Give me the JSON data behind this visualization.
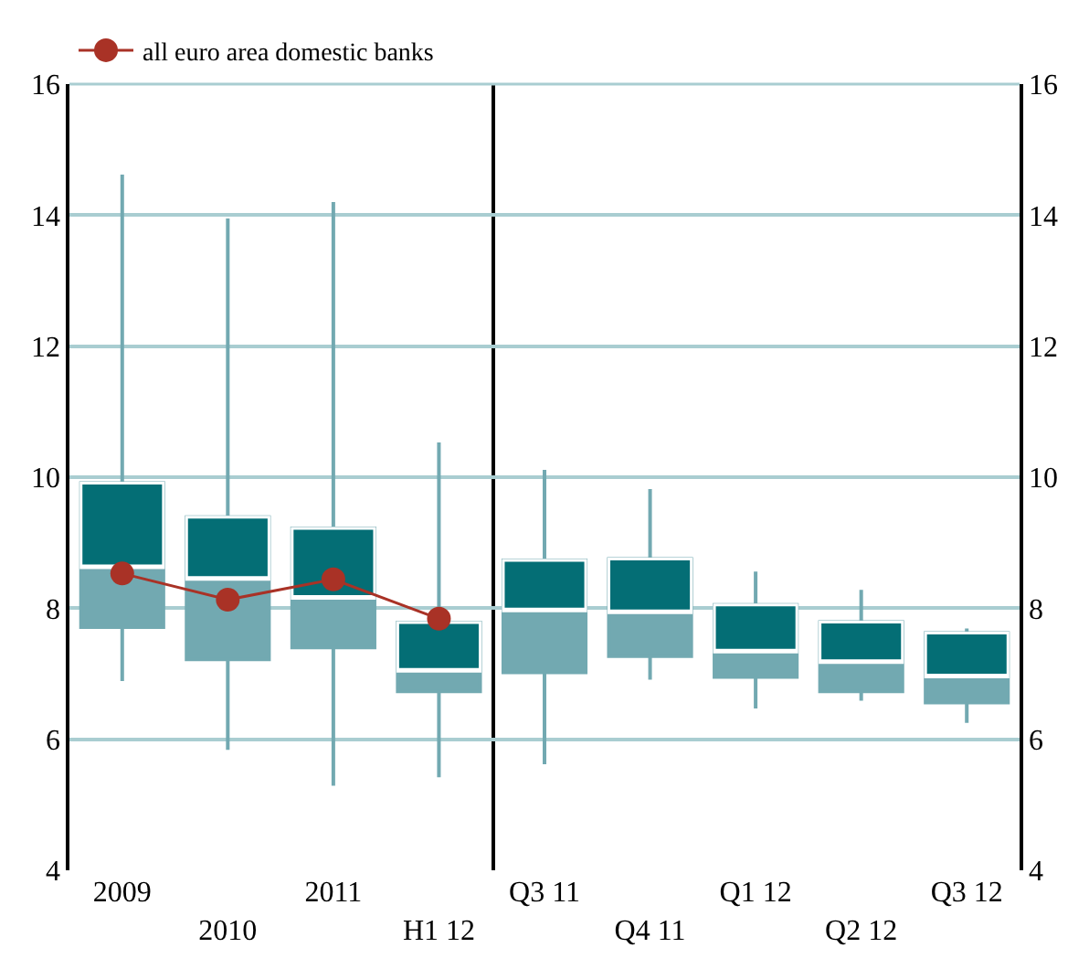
{
  "chart_data": [
    {
      "type": "box",
      "categories": [
        "2009",
        "2010",
        "2011",
        "H1 12"
      ],
      "boxes": [
        {
          "low": 6.89,
          "q1": 7.71,
          "median": 8.62,
          "q3": 9.91,
          "high": 14.62
        },
        {
          "low": 5.84,
          "q1": 7.22,
          "median": 8.44,
          "q3": 9.39,
          "high": 13.95
        },
        {
          "low": 5.29,
          "q1": 7.4,
          "median": 8.15,
          "q3": 9.22,
          "high": 14.2
        },
        {
          "low": 5.42,
          "q1": 6.73,
          "median": 7.04,
          "q3": 7.78,
          "high": 10.53
        }
      ],
      "colors": [
        [
          "#72a9b1",
          "#046e75"
        ],
        [
          "#72a9b1",
          "#046e75"
        ],
        [
          "#72a9b1",
          "#046e75"
        ],
        [
          "#72a9b1",
          "#046e75"
        ]
      ],
      "series": [
        {
          "type": "line",
          "name": "all euro area domestic banks",
          "color": "#a93226",
          "marker": "circle",
          "values": [
            8.53,
            8.13,
            8.44,
            7.84
          ]
        }
      ],
      "ylim": [
        4,
        16
      ],
      "yticks": [
        4,
        6,
        8,
        10,
        12,
        14,
        16
      ],
      "grid": "y",
      "legend": "top left"
    },
    {
      "type": "box",
      "categories": [
        "Q3 11",
        "Q4 11",
        "Q1 12",
        "Q2 12",
        "Q3 12"
      ],
      "series": [
        {
          "type": "box",
          "axis": "y2",
          "boxes": [
            {
              "low": 5.62,
              "q1": 7.02,
              "median": 7.96,
              "q3": 8.73,
              "high": 10.11
            },
            {
              "low": 6.91,
              "q1": 7.27,
              "median": 7.93,
              "q3": 8.75,
              "high": 9.82
            },
            {
              "low": 6.47,
              "q1": 6.95,
              "median": 7.33,
              "q3": 8.05,
              "high": 8.56
            },
            {
              "low": 6.59,
              "q1": 6.73,
              "median": 7.17,
              "q3": 7.79,
              "high": 8.28
            },
            {
              "low": 6.25,
              "q1": 6.56,
              "median": 6.95,
              "q3": 7.62,
              "high": 7.69
            }
          ],
          "colors": [
            [
              "#72a9b1",
              "#046e75"
            ],
            [
              "#72a9b1",
              "#046e75"
            ],
            [
              "#72a9b1",
              "#046e75"
            ],
            [
              "#72a9b1",
              "#046e75"
            ],
            [
              "#72a9b1",
              "#046e75"
            ]
          ]
        }
      ],
      "y2lim": [
        4,
        16
      ],
      "y2ticks": [
        4,
        6,
        8,
        10,
        12,
        14,
        16
      ],
      "grid": "y"
    }
  ]
}
